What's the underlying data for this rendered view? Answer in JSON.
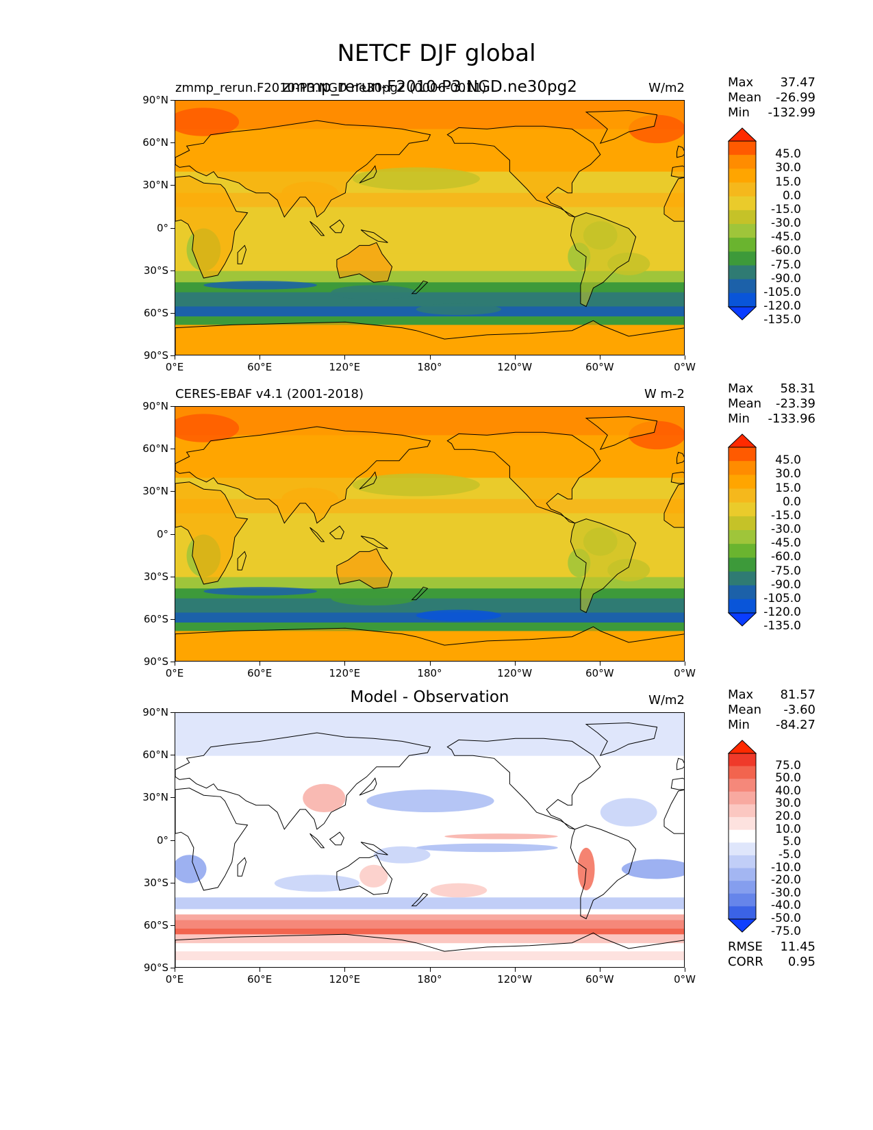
{
  "figure": {
    "title": "NETCF DJF global",
    "x_ticks": [
      "0°E",
      "60°E",
      "120°E",
      "180°",
      "120°W",
      "60°W",
      "0°W"
    ],
    "y_ticks": [
      "90°N",
      "60°N",
      "30°N",
      "0°",
      "30°S",
      "60°S",
      "90°S"
    ]
  },
  "panels": [
    {
      "left_title": "zmmp_rerun.F2010-P3.NGD.ne30pg2 (0006-0011)",
      "center_title": "zmmp_rerun-F2010-P3.NGD.ne30pg2",
      "units": "W/m2",
      "stats": [
        {
          "label": "Max",
          "value": "37.47"
        },
        {
          "label": "Mean",
          "value": "-26.99"
        },
        {
          "label": "Min",
          "value": "-132.99"
        }
      ],
      "colorbar": {
        "labels": [
          "45.0",
          "30.0",
          "15.0",
          "0.0",
          "-15.0",
          "-30.0",
          "-45.0",
          "-60.0",
          "-75.0",
          "-90.0",
          "-105.0",
          "-120.0",
          "-135.0"
        ],
        "colors": [
          "#ff2a00",
          "#ff5a00",
          "#ff8c00",
          "#ffa500",
          "#f5b81c",
          "#eacb2b",
          "#c5c228",
          "#9fc53a",
          "#6ab42f",
          "#3d9a3a",
          "#2f7b73",
          "#1c61a9",
          "#0955d9",
          "#0a3dff"
        ]
      }
    },
    {
      "left_title": "CERES-EBAF v4.1 (2001-2018)",
      "center_title": "",
      "units": "W m-2",
      "stats": [
        {
          "label": "Max",
          "value": "58.31"
        },
        {
          "label": "Mean",
          "value": "-23.39"
        },
        {
          "label": "Min",
          "value": "-133.96"
        }
      ],
      "colorbar": {
        "labels": [
          "45.0",
          "30.0",
          "15.0",
          "0.0",
          "-15.0",
          "-30.0",
          "-45.0",
          "-60.0",
          "-75.0",
          "-90.0",
          "-105.0",
          "-120.0",
          "-135.0"
        ],
        "colors": [
          "#ff2a00",
          "#ff5a00",
          "#ff8c00",
          "#ffa500",
          "#f5b81c",
          "#eacb2b",
          "#c5c228",
          "#9fc53a",
          "#6ab42f",
          "#3d9a3a",
          "#2f7b73",
          "#1c61a9",
          "#0955d9",
          "#0a3dff"
        ]
      }
    },
    {
      "left_title": "",
      "center_title": "Model - Observation",
      "units": "W/m2",
      "stats": [
        {
          "label": "Max",
          "value": "81.57"
        },
        {
          "label": "Mean",
          "value": "-3.60"
        },
        {
          "label": "Min",
          "value": "-84.27"
        }
      ],
      "colorbar": {
        "labels": [
          "75.0",
          "50.0",
          "40.0",
          "30.0",
          "20.0",
          "10.0",
          "5.0",
          "-5.0",
          "-10.0",
          "-20.0",
          "-30.0",
          "-40.0",
          "-50.0",
          "-75.0"
        ],
        "colors": [
          "#ff2a00",
          "#ef3a2a",
          "#f2644e",
          "#f5887a",
          "#f8a9a0",
          "#fbc7c1",
          "#fde2df",
          "#ffffff",
          "#dfe6fb",
          "#c1cef7",
          "#a3b6f2",
          "#859eee",
          "#6685ea",
          "#3b63e6",
          "#0f3fff"
        ]
      },
      "extra_stats": [
        {
          "label": "RMSE",
          "value": "11.45"
        },
        {
          "label": "CORR",
          "value": "0.95"
        }
      ]
    }
  ]
}
